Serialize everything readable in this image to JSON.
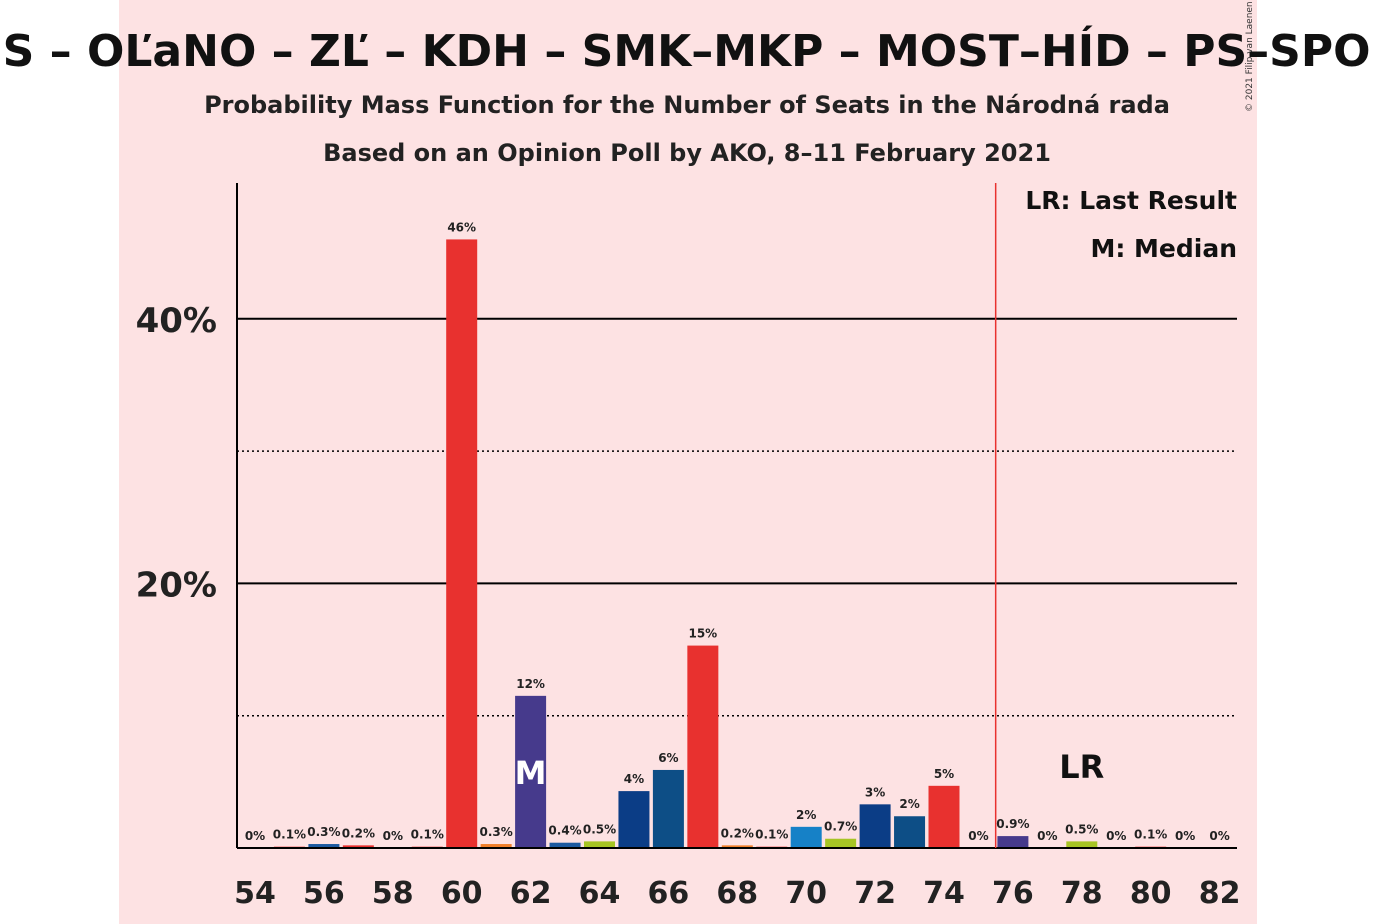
{
  "title": "SaS – OĽaNO – ZĽ – KDH – SMK–MKP – MOST–HÍD – PS–SPOLU",
  "subtitle1": "Probability Mass Function for the Number of Seats in the Národná rada",
  "subtitle2": "Based on an Opinion Poll by AKO, 8–11 February 2021",
  "copyright": "© 2021 Filip van Laenen",
  "legend": {
    "lr": "LR: Last Result",
    "median": "M: Median"
  },
  "markers": {
    "median_label": "M",
    "lr_label": "LR",
    "median_seat": 62,
    "lr_seat": 78,
    "majority_seat": 76
  },
  "colors": {
    "background_band": "#fde2e3",
    "majority_line": "#e8312f"
  },
  "chart_data": {
    "type": "bar",
    "ylim": [
      0,
      50
    ],
    "ytick_labels": [
      "20%",
      "40%"
    ],
    "ytick_values": [
      20,
      40
    ],
    "minor_gridlines": [
      10,
      30
    ],
    "xtick_labels": [
      "54",
      "56",
      "58",
      "60",
      "62",
      "64",
      "66",
      "68",
      "70",
      "72",
      "74",
      "76",
      "78",
      "80",
      "82"
    ],
    "xlim": [
      54,
      82
    ],
    "bars": [
      {
        "seats": 54,
        "value": 0,
        "label": "0%",
        "color": "#e8312f"
      },
      {
        "seats": 55,
        "value": 0.1,
        "label": "0.1%",
        "color": "#e8312f"
      },
      {
        "seats": 56,
        "value": 0.3,
        "label": "0.3%",
        "color": "#1c5aa0"
      },
      {
        "seats": 57,
        "value": 0.2,
        "label": "0.2%",
        "color": "#e8312f"
      },
      {
        "seats": 58,
        "value": 0,
        "label": "0%",
        "color": "#e8312f"
      },
      {
        "seats": 59,
        "value": 0.1,
        "label": "0.1%",
        "color": "#e8312f"
      },
      {
        "seats": 60,
        "value": 46,
        "label": "46%",
        "color": "#e8312f"
      },
      {
        "seats": 61,
        "value": 0.3,
        "label": "0.3%",
        "color": "#f07f2a"
      },
      {
        "seats": 62,
        "value": 11.5,
        "label": "12%",
        "color": "#463a8c"
      },
      {
        "seats": 63,
        "value": 0.4,
        "label": "0.4%",
        "color": "#1c5aa0"
      },
      {
        "seats": 64,
        "value": 0.5,
        "label": "0.5%",
        "color": "#a7c424"
      },
      {
        "seats": 65,
        "value": 4.3,
        "label": "4%",
        "color": "#0b3d86"
      },
      {
        "seats": 66,
        "value": 5.9,
        "label": "6%",
        "color": "#0d4e86"
      },
      {
        "seats": 67,
        "value": 15.3,
        "label": "15%",
        "color": "#e8312f"
      },
      {
        "seats": 68,
        "value": 0.2,
        "label": "0.2%",
        "color": "#f07f2a"
      },
      {
        "seats": 69,
        "value": 0.1,
        "label": "0.1%",
        "color": "#e8312f"
      },
      {
        "seats": 70,
        "value": 1.6,
        "label": "2%",
        "color": "#1681c7"
      },
      {
        "seats": 71,
        "value": 0.7,
        "label": "0.7%",
        "color": "#a7c424"
      },
      {
        "seats": 72,
        "value": 3.3,
        "label": "3%",
        "color": "#0b3d86"
      },
      {
        "seats": 73,
        "value": 2.4,
        "label": "2%",
        "color": "#0d4e86"
      },
      {
        "seats": 74,
        "value": 4.7,
        "label": "5%",
        "color": "#e8312f"
      },
      {
        "seats": 75,
        "value": 0,
        "label": "0%",
        "color": "#e8312f"
      },
      {
        "seats": 76,
        "value": 0.9,
        "label": "0.9%",
        "color": "#463a8c"
      },
      {
        "seats": 77,
        "value": 0,
        "label": "0%",
        "color": "#e8312f"
      },
      {
        "seats": 78,
        "value": 0.5,
        "label": "0.5%",
        "color": "#a7c424"
      },
      {
        "seats": 79,
        "value": 0,
        "label": "0%",
        "color": "#e8312f"
      },
      {
        "seats": 80,
        "value": 0.1,
        "label": "0.1%",
        "color": "#e8312f"
      },
      {
        "seats": 81,
        "value": 0,
        "label": "0%",
        "color": "#e8312f"
      },
      {
        "seats": 82,
        "value": 0,
        "label": "0%",
        "color": "#e8312f"
      }
    ]
  }
}
